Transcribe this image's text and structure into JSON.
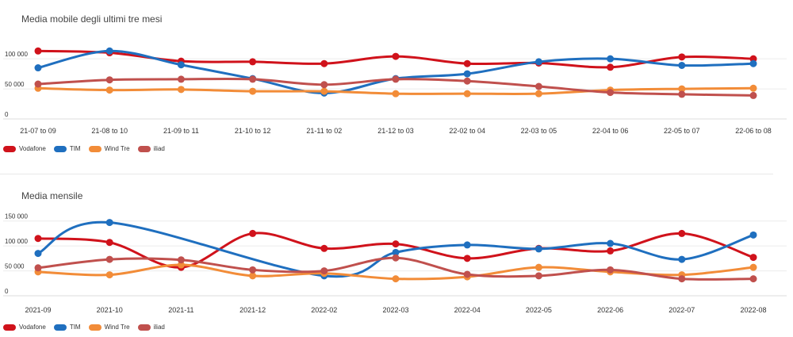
{
  "chart_data": [
    {
      "type": "line",
      "title": "Media mobile degli ultimi tre mesi",
      "categories": [
        "21-07 to 09",
        "21-08 to 10",
        "21-09 to 11",
        "21-10 to 12",
        "21-11 to 02",
        "21-12 to 03",
        "22-02 to 04",
        "22-03 to 05",
        "22-04 to 06",
        "22-05 to 07",
        "22-06 to 08"
      ],
      "y_ticks": [
        "0",
        "50 000",
        "100 000"
      ],
      "ylim": [
        0,
        145000
      ],
      "grid": true,
      "legend_position": "bottom-left",
      "series": [
        {
          "name": "Vodafone",
          "color": "#d0121b",
          "values": [
            113000,
            110000,
            96000,
            95000,
            92000,
            104000,
            92000,
            93000,
            86000,
            103000,
            100000
          ]
        },
        {
          "name": "TIM",
          "color": "#1f6fbf",
          "values": [
            85000,
            113000,
            90000,
            67000,
            43000,
            67000,
            75000,
            95000,
            100000,
            89000,
            92000
          ]
        },
        {
          "name": "Wind Tre",
          "color": "#f28c38",
          "values": [
            51000,
            48000,
            49000,
            46000,
            46000,
            42000,
            42000,
            42000,
            48000,
            50000,
            51000
          ]
        },
        {
          "name": "iliad",
          "color": "#c0504d",
          "values": [
            58000,
            65000,
            66000,
            66000,
            57000,
            66000,
            63000,
            54000,
            44000,
            41000,
            39000
          ]
        }
      ]
    },
    {
      "type": "line",
      "title": "Media mensile",
      "categories": [
        "2021-09",
        "2021-10",
        "2021-11",
        "2021-12",
        "2022-02",
        "2022-03",
        "2022-04",
        "2022-05",
        "2022-06",
        "2022-07",
        "2022-08"
      ],
      "y_ticks": [
        "0",
        "50 000",
        "100 000",
        "150 000"
      ],
      "ylim": [
        0,
        175000
      ],
      "grid": true,
      "legend_position": "bottom-left",
      "series": [
        {
          "name": "Vodafone",
          "color": "#d0121b",
          "values": [
            115000,
            107000,
            57000,
            125000,
            95000,
            104000,
            75000,
            95000,
            90000,
            125000,
            77000
          ]
        },
        {
          "name": "TIM",
          "color": "#1f6fbf",
          "values": [
            85000,
            147000,
            null,
            null,
            40000,
            87000,
            102000,
            94000,
            105000,
            73000,
            122000
          ]
        },
        {
          "name": "Wind Tre",
          "color": "#f28c38",
          "values": [
            48000,
            42000,
            62000,
            40000,
            45000,
            34000,
            38000,
            57000,
            48000,
            42000,
            57000
          ]
        },
        {
          "name": "iliad",
          "color": "#c0504d",
          "values": [
            56000,
            73000,
            72000,
            52000,
            50000,
            76000,
            43000,
            40000,
            52000,
            34000,
            34000
          ]
        }
      ]
    }
  ]
}
